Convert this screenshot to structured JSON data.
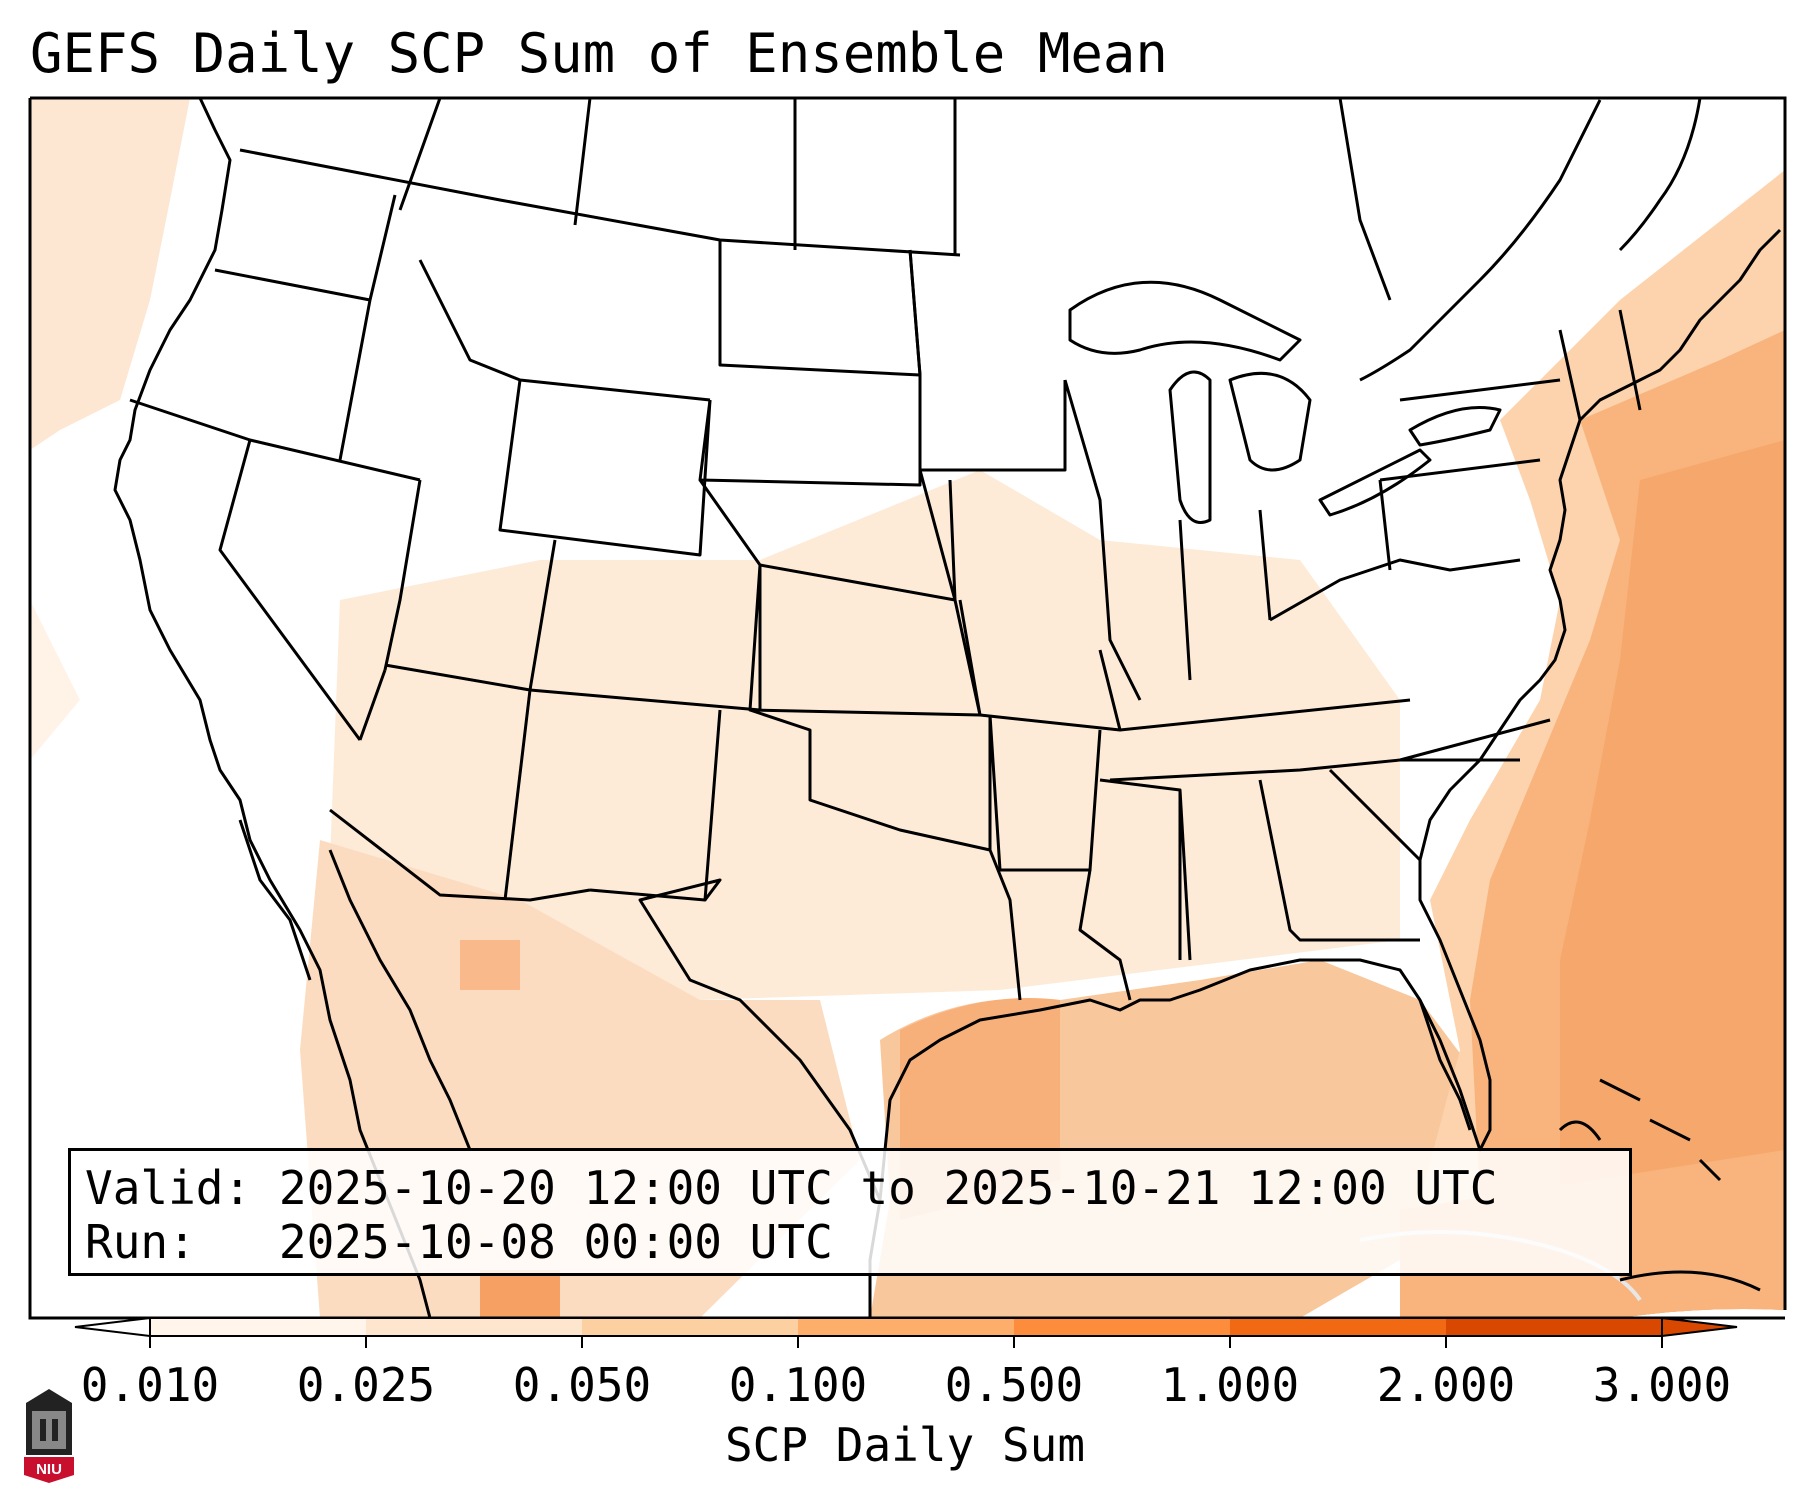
{
  "title": "GEFS Daily SCP Sum of Ensemble Mean",
  "info": {
    "valid_label": "Valid:",
    "valid_value": "2025-10-20 12:00 UTC to 2025-10-21 12:00 UTC",
    "run_label": "Run:",
    "run_value": "2025-10-08 00:00 UTC"
  },
  "colorbar": {
    "label": "SCP Daily Sum",
    "ticks": [
      "0.010",
      "0.025",
      "0.050",
      "0.100",
      "0.500",
      "1.000",
      "2.000",
      "3.000"
    ],
    "colors": [
      "#fff5eb",
      "#fee6ce",
      "#fdd0a2",
      "#fdae6b",
      "#fd8d3c",
      "#f16913",
      "#d94801",
      "#a63603"
    ],
    "under_color": "#ffffff",
    "over_color": "#7f2704",
    "extend": "both"
  },
  "logo": {
    "text": "NIU",
    "color": "#c8102e"
  }
}
